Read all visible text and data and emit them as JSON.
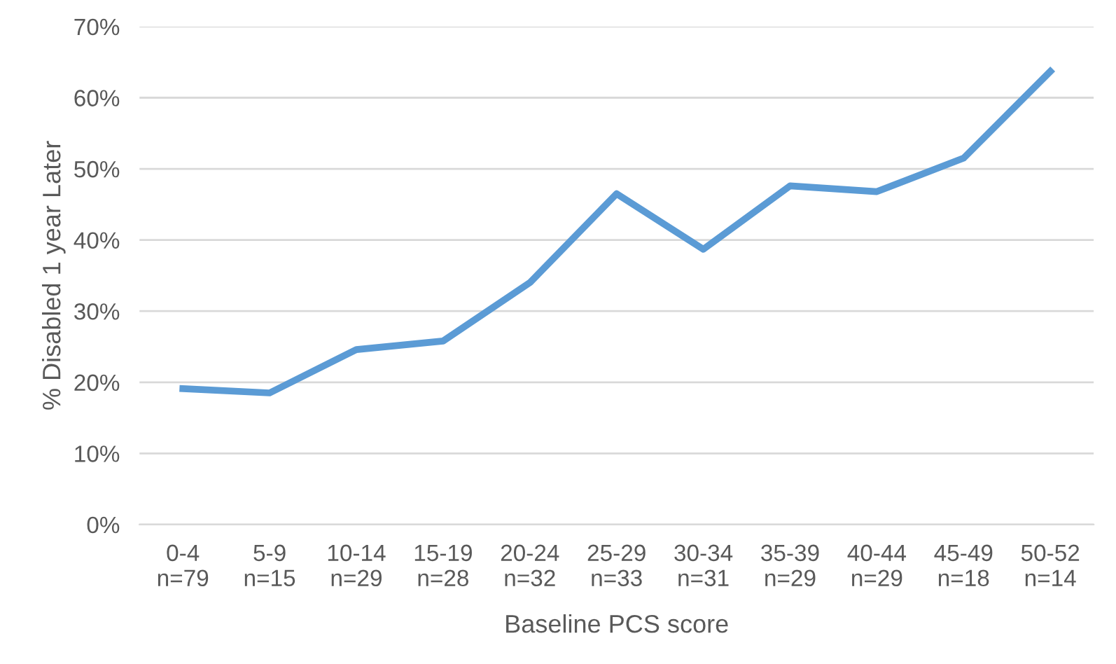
{
  "chart_data": {
    "type": "line",
    "xlabel": "Baseline PCS score",
    "ylabel": "% Disabled 1 year Later",
    "categories": [
      "0-4\nn=79",
      "5-9\nn=15",
      "10-14\nn=29",
      "15-19\nn=28",
      "20-24\nn=32",
      "25-29\nn=33",
      "30-34\nn=31",
      "35-39\nn=29",
      "40-44\nn=29",
      "45-49\nn=18",
      "50-52\nn=14"
    ],
    "series": [
      {
        "color": "#5b9bd5",
        "values": [
          19.1,
          18.5,
          24.6,
          25.8,
          34.0,
          46.5,
          38.7,
          47.6,
          46.8,
          51.5,
          63.7
        ]
      }
    ],
    "ylim": [
      0,
      70
    ],
    "yticks": [
      {
        "value": 0,
        "label": "0%"
      },
      {
        "value": 10,
        "label": "10%"
      },
      {
        "value": 20,
        "label": "20%"
      },
      {
        "value": 30,
        "label": "30%"
      },
      {
        "value": 40,
        "label": "40%"
      },
      {
        "value": 50,
        "label": "50%"
      },
      {
        "value": 60,
        "label": "60%"
      },
      {
        "value": 70,
        "label": "70%"
      }
    ],
    "grid": "y",
    "marker": "none",
    "line_style": "solid"
  }
}
